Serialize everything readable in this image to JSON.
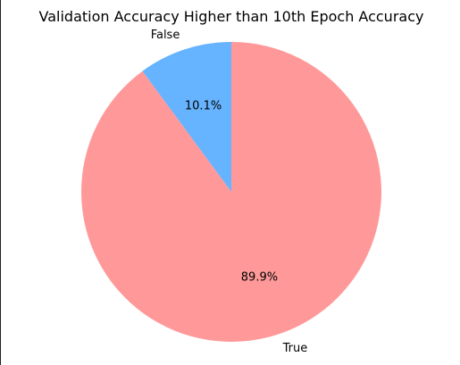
{
  "chart_data": {
    "type": "pie",
    "title": "Validation Accuracy Higher than 10th Epoch Accuracy",
    "slices": [
      {
        "label": "False",
        "value": 10.1,
        "pct_label": "10.1%",
        "color": "#66b3ff"
      },
      {
        "label": "True",
        "value": 89.9,
        "pct_label": "89.9%",
        "color": "#ff9999"
      }
    ],
    "start_angle_deg": 90,
    "direction": "counterclockwise",
    "legend": "none",
    "grid": false
  }
}
